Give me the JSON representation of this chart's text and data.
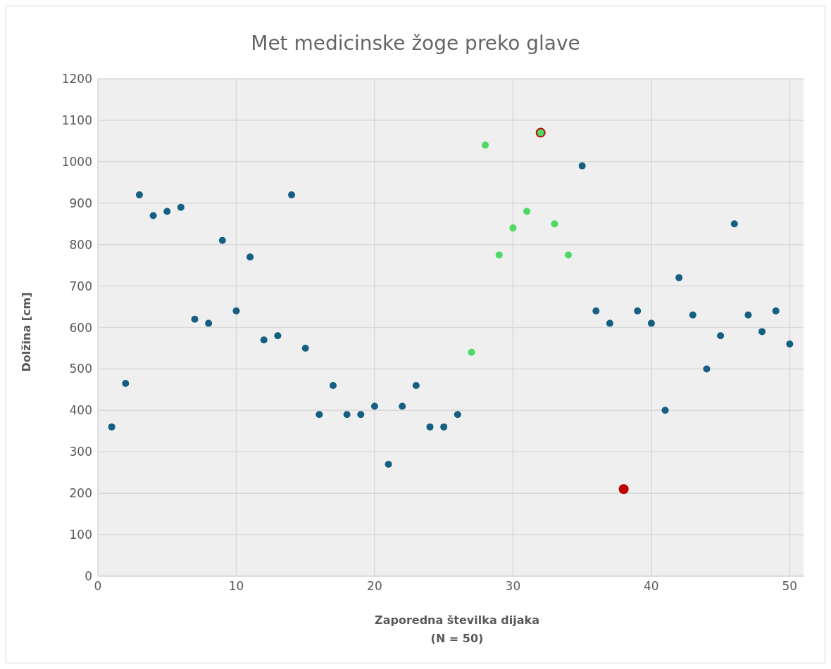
{
  "chart_data": {
    "type": "scatter",
    "title": "Met medicinske žoge preko glave",
    "xlabel": "Zaporedna številka dijaka\n(N = 50)",
    "ylabel": "Dolžina [cm]",
    "xlim": [
      0,
      51
    ],
    "xticks": [
      0,
      10,
      20,
      30,
      40,
      50
    ],
    "ylim": [
      0,
      1200
    ],
    "yticks": [
      0,
      100,
      200,
      300,
      400,
      500,
      600,
      700,
      800,
      900,
      1000,
      1100,
      1200
    ],
    "grid": true,
    "marker": "circle",
    "series": [
      {
        "color": "#155f82",
        "x": [
          1,
          2,
          3,
          4,
          5,
          6,
          7,
          8,
          9,
          10,
          11,
          12,
          13,
          14,
          15,
          16,
          17,
          18,
          19,
          20,
          21,
          22,
          23,
          24,
          25,
          26,
          35,
          36,
          37,
          39,
          40,
          41,
          42,
          43,
          44,
          45,
          46,
          47,
          48,
          49,
          50
        ],
        "values": [
          360,
          465,
          920,
          870,
          880,
          890,
          620,
          610,
          810,
          640,
          770,
          570,
          580,
          920,
          550,
          390,
          460,
          390,
          390,
          410,
          270,
          410,
          460,
          360,
          360,
          390,
          990,
          640,
          610,
          640,
          610,
          400,
          720,
          630,
          500,
          580,
          850,
          630,
          590,
          640,
          560
        ]
      },
      {
        "color": "#c00000",
        "x": [
          32,
          38
        ],
        "values": [
          1070,
          210
        ]
      },
      {
        "color": "#4cd964",
        "x": [
          27,
          28,
          29,
          30,
          31,
          32,
          33,
          34
        ],
        "values": [
          540,
          1040,
          775,
          840,
          880,
          1070,
          850,
          775
        ]
      }
    ]
  }
}
